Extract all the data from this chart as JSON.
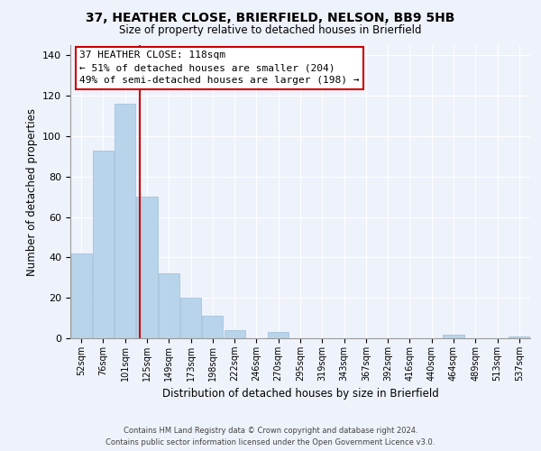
{
  "title": "37, HEATHER CLOSE, BRIERFIELD, NELSON, BB9 5HB",
  "subtitle": "Size of property relative to detached houses in Brierfield",
  "xlabel": "Distribution of detached houses by size in Brierfield",
  "ylabel": "Number of detached properties",
  "bar_color": "#b8d4ea",
  "bar_edge_color": "#9bbdd8",
  "categories": [
    "52sqm",
    "76sqm",
    "101sqm",
    "125sqm",
    "149sqm",
    "173sqm",
    "198sqm",
    "222sqm",
    "246sqm",
    "270sqm",
    "295sqm",
    "319sqm",
    "343sqm",
    "367sqm",
    "392sqm",
    "416sqm",
    "440sqm",
    "464sqm",
    "489sqm",
    "513sqm",
    "537sqm"
  ],
  "values": [
    42,
    93,
    116,
    70,
    32,
    20,
    11,
    4,
    0,
    3,
    0,
    0,
    0,
    0,
    0,
    0,
    0,
    2,
    0,
    0,
    1
  ],
  "ylim": [
    0,
    145
  ],
  "yticks": [
    0,
    20,
    40,
    60,
    80,
    100,
    120,
    140
  ],
  "property_line_x": 2.67,
  "property_line_color": "#cc0000",
  "annotation_line1": "37 HEATHER CLOSE: 118sqm",
  "annotation_line2": "← 51% of detached houses are smaller (204)",
  "annotation_line3": "49% of semi-detached houses are larger (198) →",
  "annotation_box_color": "#ffffff",
  "annotation_box_edge_color": "#cc0000",
  "footer_line1": "Contains HM Land Registry data © Crown copyright and database right 2024.",
  "footer_line2": "Contains public sector information licensed under the Open Government Licence v3.0.",
  "background_color": "#eef2fb",
  "grid_color": "#ffffff",
  "title_fontsize": 10,
  "subtitle_fontsize": 8.5
}
